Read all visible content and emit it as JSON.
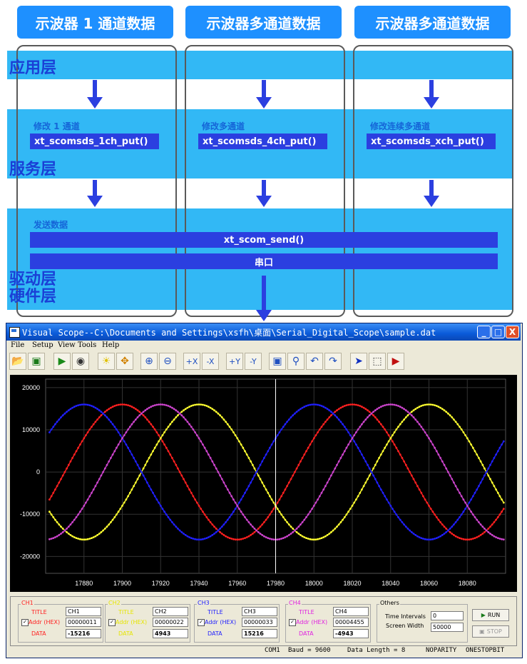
{
  "diagram": {
    "headers": [
      "示波器 1 通道数据",
      "示波器多通道数据",
      "示波器多通道数据"
    ],
    "layers": {
      "app": "应用层",
      "service": "服务层",
      "driver": "驱动层",
      "hardware": "硬件层"
    },
    "service": [
      {
        "label": "修改 1 通道",
        "func": "xt_scomsds_1ch_put()"
      },
      {
        "label": "修改多通道",
        "func": "xt_scomsds_4ch_put()"
      },
      {
        "label": "修改连续多通道",
        "func": "xt_scomsds_xch_put()"
      }
    ],
    "driver": {
      "label": "发送数据",
      "func": "xt_scom_send()"
    },
    "hardware": {
      "port": "串口"
    },
    "colors": {
      "header": "#1e90ff",
      "band": "#32b8f5",
      "func": "#2b3fe0",
      "layer_text": "#1a3fd6"
    }
  },
  "window": {
    "title": "Visual Scope--C:\\Documents and Settings\\xsfh\\桌面\\Serial_Digital_Scope\\sample.dat",
    "controls": [
      "_",
      "□",
      "X"
    ],
    "menu": [
      "File",
      "Setup",
      "View",
      "Tools",
      "Help"
    ],
    "toolbar_icons": [
      "open-icon",
      "save-icon",
      "play-icon",
      "stop-icon",
      "light-icon",
      "move-icon",
      "zoom-in-icon",
      "zoom-out-icon",
      "zoom-x-in-icon",
      "zoom-x-out-icon",
      "zoom-y-in-icon",
      "zoom-y-out-icon",
      "zoom-fit-icon",
      "zoom-search-icon",
      "undo-icon",
      "redo-icon",
      "pointer-icon",
      "select-icon",
      "cursor-icon"
    ],
    "status": [
      "COM1",
      "Baud = 9600",
      "Data Length = 8",
      "NOPARITY",
      "ONESTOPBIT"
    ]
  },
  "channels": [
    {
      "group": "CH1",
      "title_label": "TITLE",
      "title": "CH1",
      "addr_label": "Addr (HEX)",
      "addr": "00000011",
      "data_label": "DATA",
      "data": "-15216",
      "color": "#ff2020"
    },
    {
      "group": "CH2",
      "title_label": "TITLE",
      "title": "CH2",
      "addr_label": "Addr (HEX)",
      "addr": "00000022",
      "data_label": "DATA",
      "data": "4943",
      "color": "#e6e600"
    },
    {
      "group": "CH3",
      "title_label": "TITLE",
      "title": "CH3",
      "addr_label": "Addr (HEX)",
      "addr": "00000033",
      "data_label": "DATA",
      "data": "15216",
      "color": "#2020ff"
    },
    {
      "group": "CH4",
      "title_label": "TITLE",
      "title": "CH4",
      "addr_label": "Addr (HEX)",
      "addr": "00004455",
      "data_label": "DATA",
      "data": "-4943",
      "color": "#e020e0"
    }
  ],
  "others": {
    "group": "Others",
    "interval_label": "Time Intervals",
    "interval": "0",
    "width_label": "Screen Width",
    "width": "50000",
    "run": "RUN",
    "stop": "STOP"
  },
  "chart_data": {
    "type": "line",
    "x_ticks": [
      17880,
      17900,
      17920,
      17940,
      17960,
      17980,
      18000,
      18020,
      18040,
      18060,
      18080
    ],
    "y_ticks": [
      -20000,
      -10000,
      0,
      10000,
      20000
    ],
    "xlim": [
      17860,
      18100
    ],
    "ylim": [
      -24000,
      22000
    ],
    "cursor_x": 17980,
    "grid": true,
    "series": [
      {
        "color": "#ff2020",
        "function": "16000*sin(2*pi*(x-17870)/120)"
      },
      {
        "color": "#ffff30",
        "function": "16000*sin(2*pi*(x-17910)/120)"
      },
      {
        "color": "#2020ff",
        "function": "16000*sin(2*pi*(x-17850)/120)"
      },
      {
        "color": "#cc44cc",
        "function": "16000*sin(2*pi*(x-17890)/120)"
      }
    ]
  }
}
